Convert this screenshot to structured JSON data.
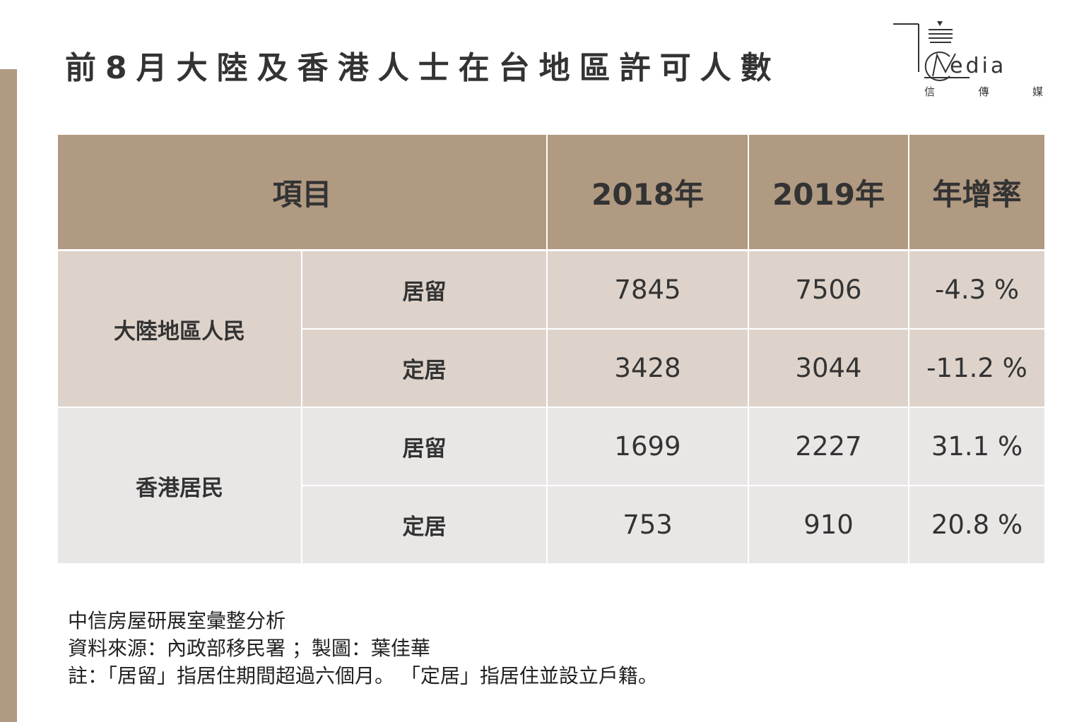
{
  "title": "前8月大陸及香港人士在台地區許可人數",
  "logo": {
    "word": "edia",
    "sub": [
      "信",
      "傳",
      "媒"
    ]
  },
  "colors": {
    "accent": "#b19a82",
    "row_mainland": "#ddd3cb",
    "row_hongkong": "#e9e7e6"
  },
  "chart_data": {
    "type": "table",
    "columns": [
      "項目",
      "2018年",
      "2019年",
      "年增率"
    ],
    "groups": [
      {
        "category": "大陸地區人民",
        "rows": [
          {
            "item": "居留",
            "y2018": "7845",
            "y2019": "7506",
            "growth": "-4.3 %"
          },
          {
            "item": "定居",
            "y2018": "3428",
            "y2019": "3044",
            "growth": "-11.2 %"
          }
        ]
      },
      {
        "category": "香港居民",
        "rows": [
          {
            "item": "居留",
            "y2018": "1699",
            "y2019": "2227",
            "growth": "31.1 %"
          },
          {
            "item": "定居",
            "y2018": "753",
            "y2019": "910",
            "growth": "20.8 %"
          }
        ]
      }
    ]
  },
  "footer": {
    "line1": "中信房屋研展室彙整分析",
    "line2": "資料來源：內政部移民署 ；製圖：葉佳華",
    "line3": "註：「居留」指居住期間超過六個月。 「定居」指居住並設立戶籍。"
  }
}
